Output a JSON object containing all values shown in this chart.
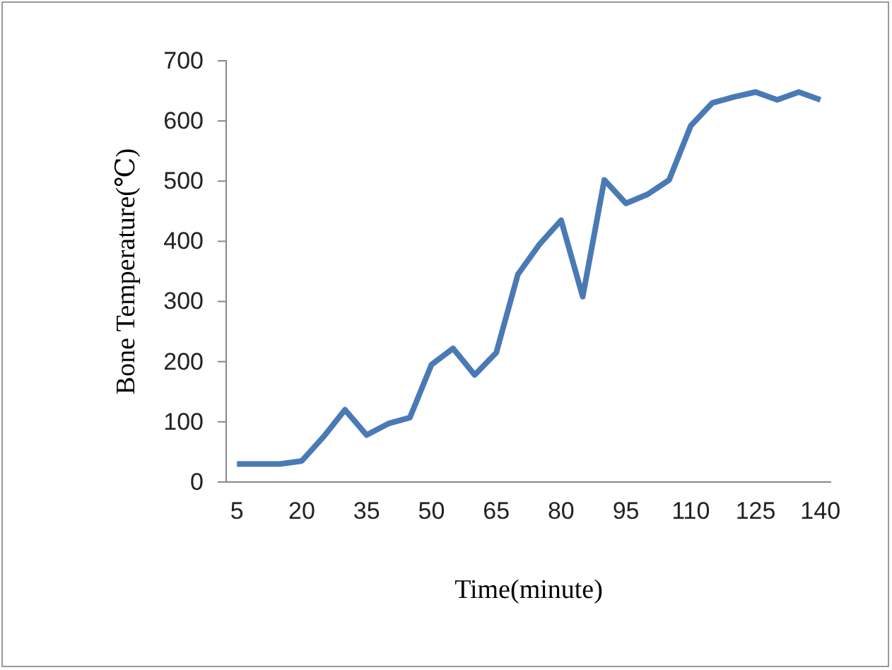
{
  "chart_data": {
    "type": "line",
    "xlabel": "Time(minute)",
    "ylabel": "Bone Temperature(℃)",
    "x": [
      5,
      10,
      15,
      20,
      25,
      30,
      35,
      40,
      45,
      50,
      55,
      60,
      65,
      70,
      75,
      80,
      85,
      90,
      95,
      100,
      105,
      110,
      115,
      120,
      125,
      130,
      135,
      140
    ],
    "series": [
      {
        "color": "#4a7ab5",
        "values": [
          30,
          30,
          30,
          35,
          75,
          120,
          78,
          97,
          107,
          195,
          222,
          178,
          215,
          345,
          395,
          435,
          308,
          502,
          463,
          478,
          502,
          592,
          630,
          640,
          648,
          635,
          648,
          635
        ]
      }
    ],
    "xlim": [
      2.5,
      142.5
    ],
    "xticks": [
      5,
      20,
      35,
      50,
      65,
      80,
      95,
      110,
      125,
      140
    ],
    "ylim": [
      0,
      700
    ],
    "yticks": [
      0,
      100,
      200,
      300,
      400,
      500,
      600,
      700
    ],
    "grid": false,
    "marker": "none",
    "line_style": "solid"
  }
}
